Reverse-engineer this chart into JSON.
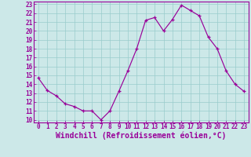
{
  "x": [
    0,
    1,
    2,
    3,
    4,
    5,
    6,
    7,
    8,
    9,
    10,
    11,
    12,
    13,
    14,
    15,
    16,
    17,
    18,
    19,
    20,
    21,
    22,
    23
  ],
  "y": [
    14.7,
    13.3,
    12.7,
    11.8,
    11.5,
    11.0,
    11.0,
    10.0,
    11.0,
    13.2,
    15.5,
    18.0,
    21.2,
    21.5,
    20.0,
    21.3,
    22.9,
    22.3,
    21.7,
    19.3,
    18.0,
    15.5,
    14.0,
    13.2
  ],
  "xlim": [
    -0.5,
    23.5
  ],
  "ylim": [
    9.7,
    23.3
  ],
  "xticks": [
    0,
    1,
    2,
    3,
    4,
    5,
    6,
    7,
    8,
    9,
    10,
    11,
    12,
    13,
    14,
    15,
    16,
    17,
    18,
    19,
    20,
    21,
    22,
    23
  ],
  "yticks": [
    10,
    11,
    12,
    13,
    14,
    15,
    16,
    17,
    18,
    19,
    20,
    21,
    22,
    23
  ],
  "xlabel": "Windchill (Refroidissement éolien,°C)",
  "line_color": "#990099",
  "marker": "+",
  "bg_color": "#cce8e8",
  "grid_color": "#99cccc",
  "tick_label_fontsize": 5.5,
  "xlabel_fontsize": 7.0,
  "spine_color": "#990099"
}
